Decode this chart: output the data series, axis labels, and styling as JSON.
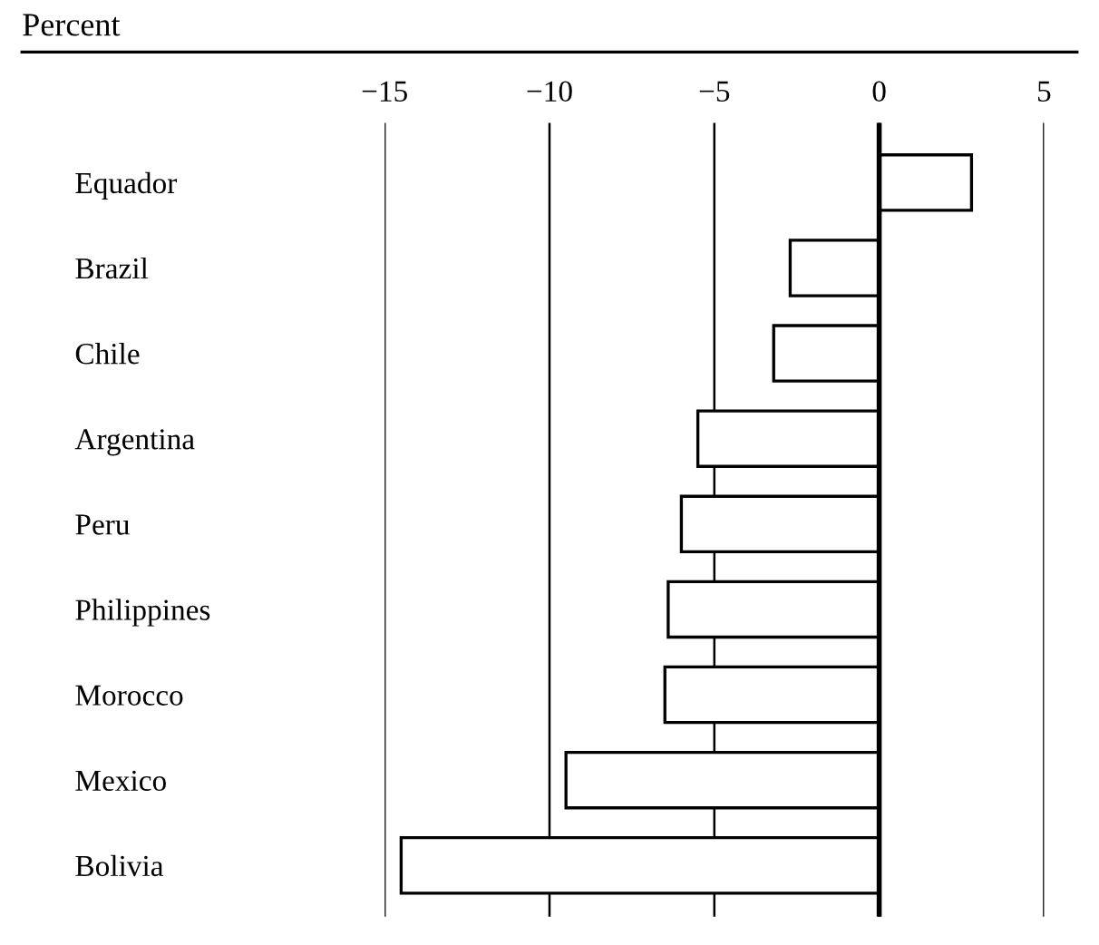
{
  "chart_data": {
    "type": "bar",
    "orientation": "horizontal",
    "title": "Percent",
    "categories": [
      "Equador",
      "Brazil",
      "Chile",
      "Argentina",
      "Peru",
      "Philippines",
      "Morocco",
      "Mexico",
      "Bolivia"
    ],
    "values": [
      2.8,
      -2.7,
      -3.2,
      -5.5,
      -6.0,
      -6.4,
      -6.5,
      -9.5,
      -14.5
    ],
    "color": "#ffffff",
    "xlim": [
      -15,
      5
    ],
    "xticks": [
      {
        "value": -15,
        "label": "−15"
      },
      {
        "value": -10,
        "label": "−10"
      },
      {
        "value": -5,
        "label": "−5"
      },
      0,
      5
    ],
    "grid": "x",
    "ref_lines": [
      {
        "axis": "x",
        "value": 0,
        "color": "#000000"
      }
    ]
  }
}
